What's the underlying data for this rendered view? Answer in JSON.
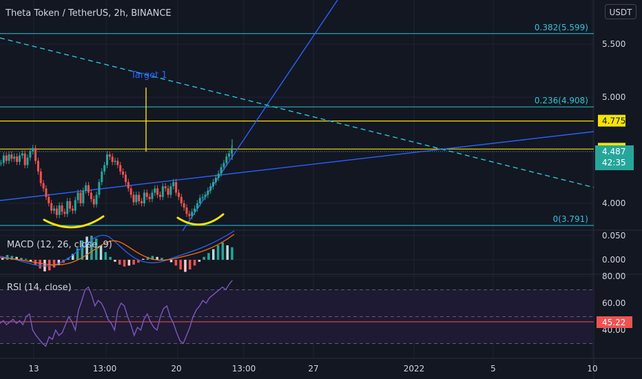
{
  "title": "Theta Token / TetherUS, 2h, BINANCE",
  "unit_label": "USDT",
  "colors": {
    "background": "#131722",
    "up": "#26a69a",
    "down": "#ef5350",
    "fib": "#26c6da",
    "level": "#f5e400",
    "trend": "#2962ff",
    "hand_drawn": "#f5e400",
    "rsi": "#7e57c2",
    "rsi_band": "#1e1a33",
    "axis_text": "#d1d4dc",
    "badge_price": "#26a69a",
    "badge_rsi": "#ef5350"
  },
  "chart_data": {
    "type": "line",
    "price_ticks": [
      "5.500",
      "5.000",
      "4.000"
    ],
    "fib_levels": [
      {
        "label": "0.382(5.599)",
        "value": 5.599
      },
      {
        "label": "0.236(4.908)",
        "value": 4.908
      },
      {
        "label": "0(3.791)",
        "value": 3.791
      }
    ],
    "price_levels": [
      {
        "label": "4.775",
        "value": 4.775
      },
      {
        "label": "4.511",
        "value": 4.511
      }
    ],
    "current_price": {
      "price": "4.487",
      "countdown": "42:35"
    },
    "annotation": "Target 1",
    "x_ticks": [
      "13",
      "13:00",
      "20",
      "13:00",
      "27",
      "2022",
      "5",
      "10"
    ],
    "price_series": {
      "name": "",
      "values": [
        4.38,
        4.45,
        4.4,
        4.46,
        4.42,
        4.44,
        4.39,
        4.45,
        4.47,
        4.36,
        4.43,
        4.49,
        4.52,
        4.4,
        4.3,
        4.19,
        4.14,
        4.06,
        4.0,
        3.93,
        3.95,
        3.89,
        3.98,
        3.92,
        3.9,
        4.02,
        3.95,
        3.93,
        4.03,
        4.1,
        4.0,
        4.12,
        4.17,
        4.1,
        4.04,
        3.99,
        4.08,
        4.2,
        4.3,
        4.36,
        4.46,
        4.44,
        4.39,
        4.4,
        4.36,
        4.3,
        4.27,
        4.2,
        4.14,
        4.08,
        4.01,
        4.08,
        4.02,
        4.0,
        4.1,
        4.06,
        4.04,
        4.1,
        4.14,
        4.08,
        4.06,
        4.16,
        4.14,
        4.08,
        4.16,
        4.2,
        4.1,
        4.06,
        4.0,
        3.96,
        3.9,
        3.88,
        3.92,
        3.95,
        4.0,
        4.05,
        4.06,
        4.08,
        4.12,
        4.16,
        4.2,
        4.24,
        4.28,
        4.34,
        4.38,
        4.44,
        4.47,
        4.52
      ]
    },
    "macd": {
      "name": "MACD (12, 26, close, 9)",
      "ticks": [
        "0.050",
        "0.000"
      ],
      "histogram": [
        0.005,
        0.01,
        0.008,
        0.006,
        0.004,
        0.002,
        -0.004,
        -0.01,
        -0.018,
        -0.024,
        -0.022,
        -0.016,
        -0.01,
        -0.006,
        0.004,
        0.012,
        0.024,
        0.04,
        0.048,
        0.05,
        0.044,
        0.03,
        0.016,
        0.006,
        -0.004,
        -0.01,
        -0.014,
        -0.012,
        -0.01,
        -0.006,
        0.002,
        0.006,
        0.008,
        0.006,
        0.004,
        0.001,
        -0.005,
        -0.012,
        -0.02,
        -0.025,
        -0.02,
        -0.012,
        -0.004,
        0.006,
        0.014,
        0.022,
        0.03,
        0.036,
        0.03,
        0.026
      ]
    },
    "rsi": {
      "name": "RSI (14, close)",
      "ticks": [
        "80.00",
        "60.00",
        "40.00"
      ],
      "current": "45.22",
      "bands": [
        70,
        50,
        30
      ],
      "values": [
        45,
        47,
        44,
        46,
        48,
        45,
        47,
        44,
        50,
        52,
        40,
        36,
        33,
        30,
        28,
        35,
        33,
        40,
        36,
        38,
        44,
        50,
        46,
        40,
        55,
        62,
        70,
        72,
        66,
        58,
        62,
        60,
        55,
        48,
        45,
        40,
        55,
        60,
        58,
        50,
        44,
        36,
        42,
        40,
        48,
        52,
        46,
        42,
        40,
        50,
        56,
        58,
        50,
        45,
        38,
        32,
        30,
        36,
        42,
        50,
        55,
        58,
        62,
        60,
        64,
        66,
        68,
        70,
        72,
        70,
        74,
        77
      ]
    }
  }
}
